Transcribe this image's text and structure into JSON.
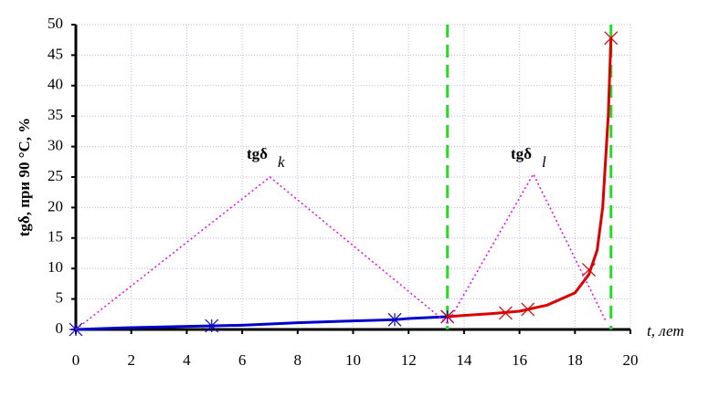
{
  "chart_data": {
    "type": "line",
    "y_label": "tgδ, при 90 °C, %",
    "x_label": "t, лет",
    "xlim": [
      0,
      20
    ],
    "xticks": [
      0,
      2,
      4,
      6,
      8,
      10,
      12,
      14,
      16,
      18,
      20
    ],
    "ylim": [
      0,
      50
    ],
    "yticks": [
      0,
      5,
      10,
      15,
      20,
      25,
      30,
      35,
      40,
      45,
      50
    ],
    "grid": true,
    "annotations": [
      {
        "text": "tgδ",
        "sub": "k"
      },
      {
        "text": "tgδ",
        "sub": "l"
      }
    ],
    "vlines": {
      "color": "#22dd22",
      "x": [
        13.4,
        19.3
      ]
    },
    "series": [
      {
        "color": "#0000cc",
        "style": "solid",
        "marker": "none",
        "x": [
          0,
          2,
          4,
          5,
          6,
          8,
          10,
          11.5,
          12,
          13.4
        ],
        "values": [
          0,
          0.3,
          0.5,
          0.6,
          0.7,
          1.1,
          1.4,
          1.6,
          1.8,
          2.1
        ]
      },
      {
        "color": "#0000cc",
        "style": "none",
        "marker": "asterisk",
        "x": [
          0,
          4.9,
          11.5,
          13.4
        ],
        "values": [
          0,
          0.6,
          1.6,
          2.1
        ]
      },
      {
        "color": "#dd0000",
        "style": "solid",
        "marker": "none",
        "x": [
          13.4,
          14,
          15,
          16,
          17,
          18,
          18.5,
          18.8,
          19,
          19.2,
          19.3
        ],
        "values": [
          2.1,
          2.3,
          2.6,
          3,
          4,
          6,
          9,
          13,
          20,
          35,
          48
        ]
      },
      {
        "color": "#dd0000",
        "style": "none",
        "marker": "x",
        "x": [
          13.4,
          15.5,
          16.3,
          18.5,
          19.3
        ],
        "values": [
          2.1,
          2.7,
          3.3,
          9.8,
          47.8
        ]
      },
      {
        "color": "#ee00ee",
        "style": "dotted",
        "marker": "none",
        "x": [
          0,
          7,
          13.4
        ],
        "values": [
          0,
          25,
          1
        ]
      },
      {
        "color": "#ee00ee",
        "style": "dotted",
        "marker": "none",
        "x": [
          13.4,
          16.5,
          19.1
        ],
        "values": [
          1,
          25.5,
          1.5
        ]
      }
    ]
  }
}
